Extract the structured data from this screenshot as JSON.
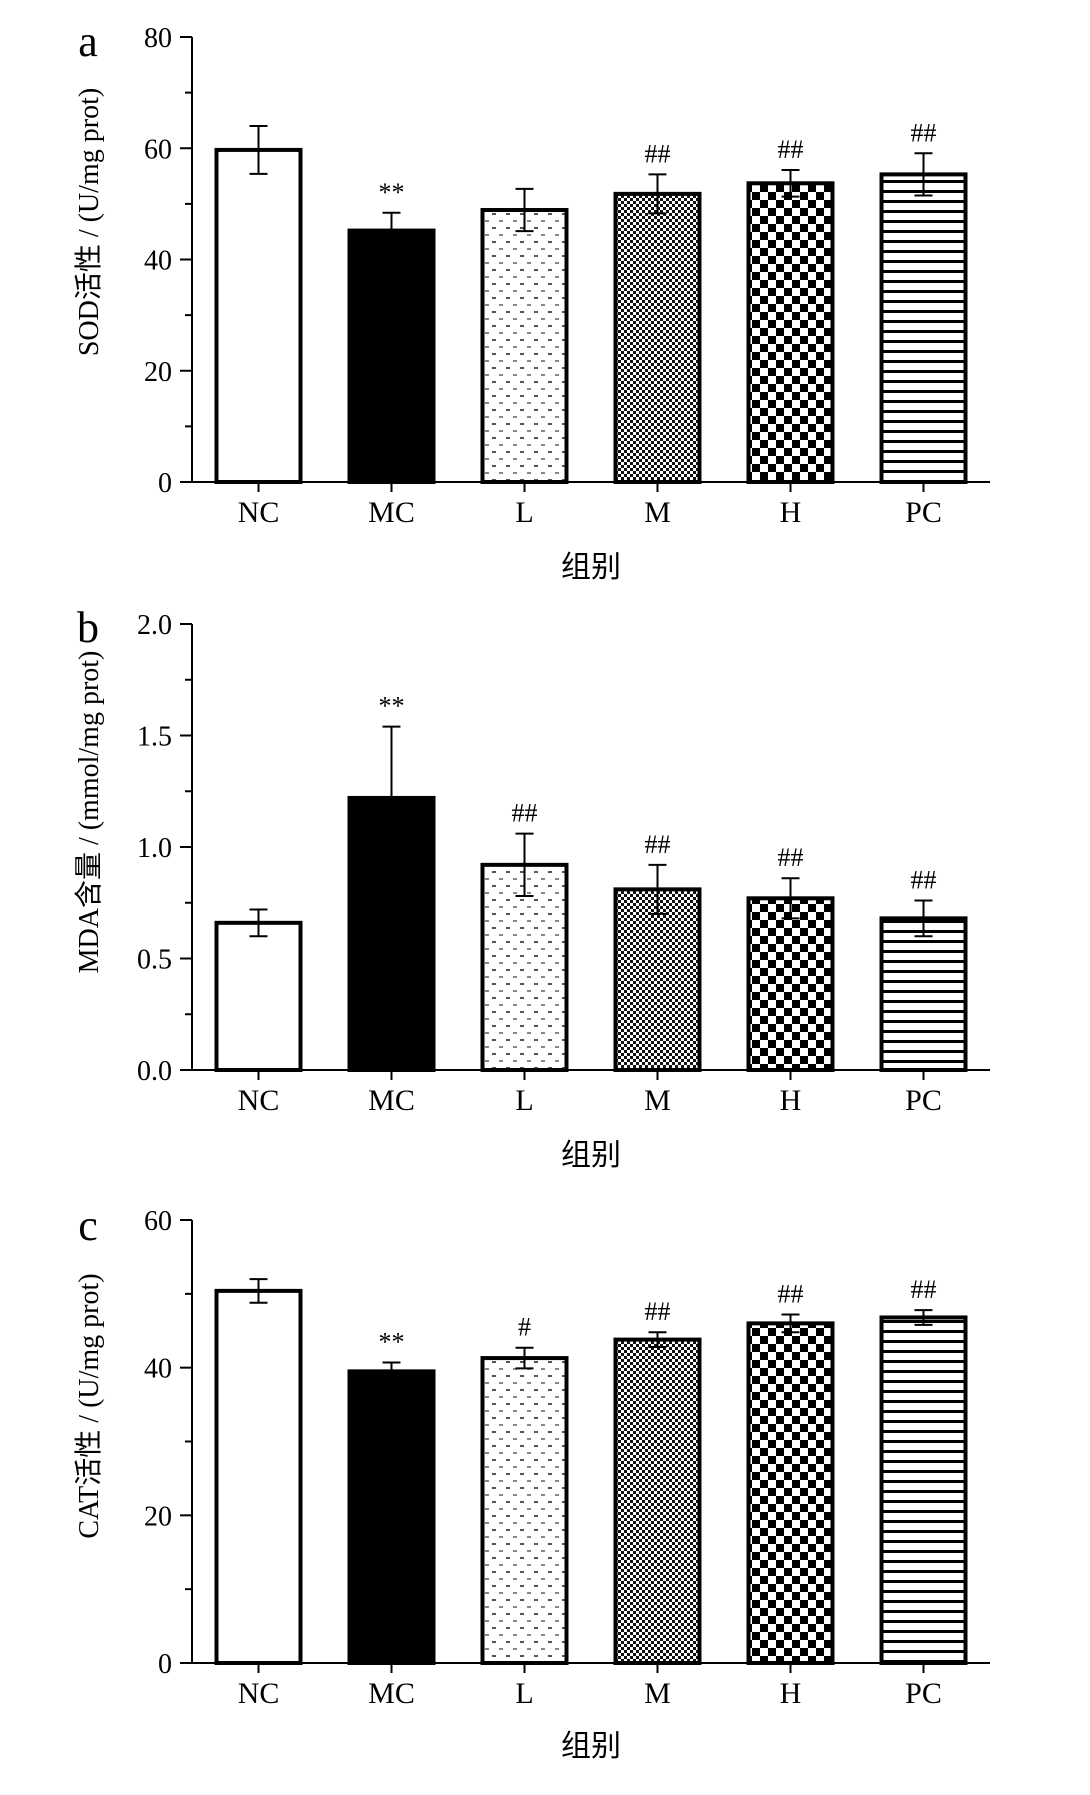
{
  "chart_data": [
    {
      "type": "bar",
      "panel": "a",
      "categories": [
        "NC",
        "MC",
        "L",
        "M",
        "H",
        "PC"
      ],
      "values": [
        59.7,
        45.2,
        48.9,
        51.8,
        53.7,
        55.3
      ],
      "errors": [
        4.3,
        3.2,
        3.8,
        3.5,
        2.4,
        3.8
      ],
      "significance": [
        "",
        "**",
        "",
        "##",
        "##",
        "##"
      ],
      "patterns": [
        "white",
        "black",
        "sparse-dots",
        "fine-check",
        "checker",
        "hlines"
      ],
      "ylabel": "SOD活性 / (U/mg prot)",
      "xlabel": "组别",
      "ylim": [
        0,
        80
      ],
      "yticks": [
        "0",
        "20",
        "40",
        "60",
        "80"
      ]
    },
    {
      "type": "bar",
      "panel": "b",
      "categories": [
        "NC",
        "MC",
        "L",
        "M",
        "H",
        "PC"
      ],
      "values": [
        0.66,
        1.22,
        0.92,
        0.81,
        0.77,
        0.68
      ],
      "errors": [
        0.06,
        0.32,
        0.14,
        0.11,
        0.09,
        0.08
      ],
      "significance": [
        "",
        "**",
        "##",
        "##",
        "##",
        "##"
      ],
      "patterns": [
        "white",
        "black",
        "sparse-dots",
        "fine-check",
        "checker",
        "hlines"
      ],
      "ylabel": "MDA含量 / (mmol/mg prot)",
      "xlabel": "组别",
      "ylim": [
        0,
        2
      ],
      "yticks": [
        "0.0",
        "0.5",
        "1.0",
        "1.5",
        "2.0"
      ]
    },
    {
      "type": "bar",
      "panel": "c",
      "categories": [
        "NC",
        "MC",
        "L",
        "M",
        "H",
        "PC"
      ],
      "values": [
        50.4,
        39.5,
        41.3,
        43.8,
        46.0,
        46.8
      ],
      "errors": [
        1.6,
        1.2,
        1.4,
        1.0,
        1.2,
        1.0
      ],
      "significance": [
        "",
        "**",
        "#",
        "##",
        "##",
        "##"
      ],
      "patterns": [
        "white",
        "black",
        "sparse-dots",
        "fine-check",
        "checker",
        "hlines"
      ],
      "ylabel": "CAT活性 / (U/mg prot)",
      "xlabel": "组别",
      "ylim": [
        0,
        60
      ],
      "yticks": [
        "0",
        "20",
        "40",
        "60"
      ]
    }
  ]
}
